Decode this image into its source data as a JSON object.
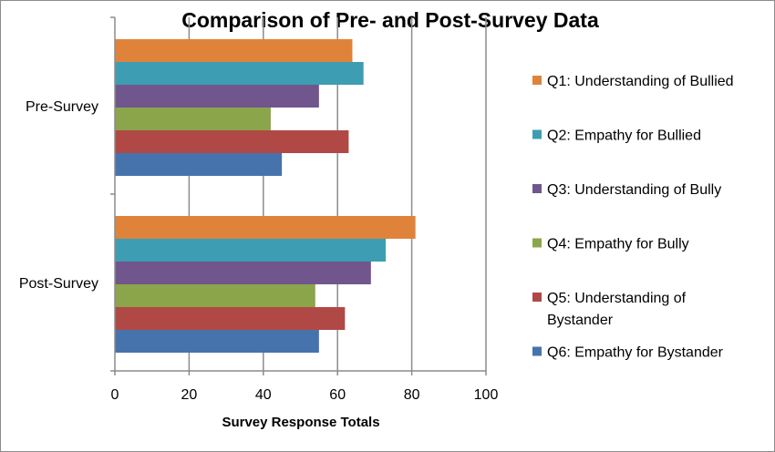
{
  "chart_data": {
    "type": "bar",
    "orientation": "horizontal",
    "title": "Comparison of Pre- and Post-Survey Data",
    "xlabel": "Survey Response Totals",
    "ylabel": "",
    "xlim": [
      0,
      100
    ],
    "xticks": [
      "0",
      "20",
      "40",
      "60",
      "80",
      "100"
    ],
    "grid": "vertical",
    "legend_position": "right",
    "categories": [
      "Pre-Survey",
      "Post-Survey"
    ],
    "series": [
      {
        "name": "Q1:  Understanding of Bullied",
        "legend_lines": [
          "Q1:  Understanding of Bullied"
        ],
        "color": "#E0833A",
        "values": [
          64,
          81
        ]
      },
      {
        "name": "Q2:  Empathy for Bullied",
        "legend_lines": [
          "Q2:  Empathy for Bullied"
        ],
        "color": "#3D9DB3",
        "values": [
          67,
          73
        ]
      },
      {
        "name": "Q3:  Understanding of Bully",
        "legend_lines": [
          "Q3:  Understanding of Bully"
        ],
        "color": "#71568E",
        "values": [
          55,
          69
        ]
      },
      {
        "name": "Q4:  Empathy for Bully",
        "legend_lines": [
          "Q4:  Empathy for Bully"
        ],
        "color": "#8BA54B",
        "values": [
          42,
          54
        ]
      },
      {
        "name": "Q5:  Understanding of Bystander",
        "legend_lines": [
          "Q5:  Understanding of",
          "Bystander"
        ],
        "color": "#B04946",
        "values": [
          63,
          62
        ]
      },
      {
        "name": "Q6:  Empathy for Bystander",
        "legend_lines": [
          "Q6:  Empathy for Bystander"
        ],
        "color": "#4673AC",
        "values": [
          45,
          55
        ]
      }
    ]
  }
}
